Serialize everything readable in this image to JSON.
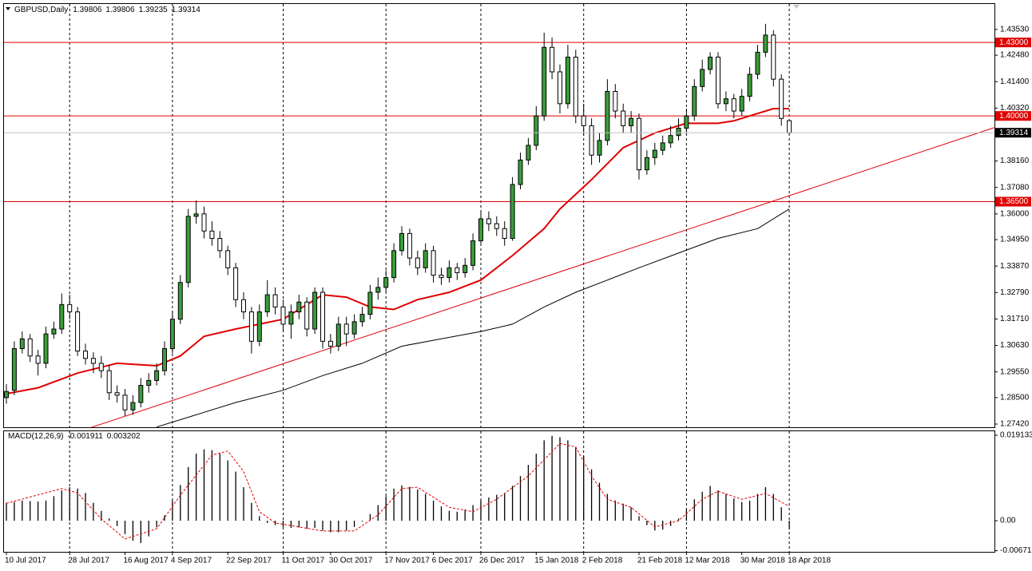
{
  "chart_data": {
    "type": "candlestick",
    "title": "GBPUSD,Daily",
    "grid": true,
    "up_color": "#3a9d3a",
    "down_color": "#ffffff",
    "categories": [
      "10 Jul 2017",
      null,
      null,
      null,
      null,
      null,
      null,
      null,
      "28 Jul 2017",
      null,
      null,
      null,
      null,
      null,
      null,
      "16 Aug 2017",
      null,
      null,
      null,
      null,
      null,
      "4 Sep 2017",
      null,
      null,
      null,
      null,
      null,
      null,
      "22 Sep 2017",
      null,
      null,
      null,
      null,
      null,
      null,
      "11 Oct 2017",
      null,
      null,
      null,
      null,
      null,
      "30 Oct 2017",
      null,
      null,
      null,
      null,
      null,
      null,
      "17 Nov 2017",
      null,
      null,
      null,
      null,
      null,
      "6 Dec 2017",
      null,
      null,
      null,
      null,
      null,
      "26 Dec 2017",
      null,
      null,
      null,
      null,
      null,
      null,
      "15 Jan 2018",
      null,
      null,
      null,
      null,
      null,
      "2 Feb 2018",
      null,
      null,
      null,
      null,
      null,
      null,
      "21 Feb 2018",
      null,
      null,
      null,
      null,
      null,
      "12 Mar 2018",
      null,
      null,
      null,
      null,
      null,
      null,
      "30 Mar 2018",
      null,
      null,
      null,
      null,
      null,
      "18 Apr 2018"
    ],
    "open": [
      1.285,
      1.288,
      1.305,
      1.309,
      1.302,
      1.299,
      1.311,
      1.313,
      1.323,
      1.32,
      1.304,
      1.301,
      1.299,
      1.296,
      1.287,
      1.286,
      1.28,
      1.283,
      1.29,
      1.292,
      1.296,
      1.305,
      1.317,
      1.332,
      1.359,
      1.36,
      1.353,
      1.35,
      1.345,
      1.338,
      1.325,
      1.32,
      1.308,
      1.32,
      1.327,
      1.322,
      1.315,
      1.32,
      1.324,
      1.313,
      1.328,
      1.308,
      1.306,
      1.315,
      1.311,
      1.316,
      1.319,
      1.328,
      1.33,
      1.334,
      1.345,
      1.352,
      1.342,
      1.338,
      1.345,
      1.335,
      1.334,
      1.338,
      1.336,
      1.339,
      1.349,
      1.358,
      1.356,
      1.354,
      1.35,
      1.372,
      1.382,
      1.388,
      1.4,
      1.428,
      1.418,
      1.405,
      1.424,
      1.4,
      1.396,
      1.384,
      1.39,
      1.41,
      1.402,
      1.396,
      1.399,
      1.378,
      1.383,
      1.386,
      1.389,
      1.392,
      1.395,
      1.4,
      1.412,
      1.419,
      1.424,
      1.405,
      1.407,
      1.402,
      1.408,
      1.417,
      1.426,
      1.433,
      1.415,
      1.39806
    ],
    "high": [
      1.2905,
      1.308,
      1.312,
      1.311,
      1.3045,
      1.314,
      1.316,
      1.3275,
      1.327,
      1.322,
      1.307,
      1.3035,
      1.302,
      1.2985,
      1.29,
      1.2885,
      1.286,
      1.293,
      1.295,
      1.299,
      1.308,
      1.32,
      1.335,
      1.362,
      1.3655,
      1.363,
      1.357,
      1.353,
      1.347,
      1.34,
      1.328,
      1.322,
      1.323,
      1.333,
      1.33,
      1.325,
      1.323,
      1.327,
      1.326,
      1.33,
      1.33,
      1.311,
      1.318,
      1.318,
      1.319,
      1.322,
      1.331,
      1.334,
      1.337,
      1.348,
      1.355,
      1.354,
      1.345,
      1.348,
      1.347,
      1.338,
      1.341,
      1.34,
      1.342,
      1.352,
      1.361,
      1.361,
      1.359,
      1.357,
      1.375,
      1.385,
      1.391,
      1.404,
      1.434,
      1.432,
      1.421,
      1.429,
      1.427,
      1.405,
      1.399,
      1.393,
      1.415,
      1.413,
      1.405,
      1.402,
      1.401,
      1.386,
      1.389,
      1.392,
      1.396,
      1.399,
      1.403,
      1.415,
      1.423,
      1.426,
      1.426,
      1.41,
      1.409,
      1.411,
      1.42,
      1.429,
      1.4376,
      1.435,
      1.417,
      1.39806
    ],
    "low": [
      1.2825,
      1.286,
      1.303,
      1.2995,
      1.294,
      1.297,
      1.309,
      1.311,
      1.317,
      1.302,
      1.2985,
      1.295,
      1.293,
      1.284,
      1.283,
      1.2775,
      1.278,
      1.281,
      1.287,
      1.29,
      1.294,
      1.303,
      1.315,
      1.33,
      1.356,
      1.35,
      1.347,
      1.342,
      1.335,
      1.322,
      1.317,
      1.303,
      1.306,
      1.318,
      1.319,
      1.312,
      1.309,
      1.317,
      1.31,
      1.311,
      1.305,
      1.303,
      1.304,
      1.306,
      1.309,
      1.314,
      1.317,
      1.325,
      1.328,
      1.332,
      1.343,
      1.339,
      1.335,
      1.336,
      1.332,
      1.331,
      1.332,
      1.333,
      1.334,
      1.337,
      1.347,
      1.353,
      1.351,
      1.347,
      1.349,
      1.37,
      1.38,
      1.386,
      1.398,
      1.415,
      1.401,
      1.403,
      1.397,
      1.392,
      1.38,
      1.381,
      1.388,
      1.399,
      1.393,
      1.393,
      1.374,
      1.376,
      1.38,
      1.384,
      1.387,
      1.39,
      1.393,
      1.398,
      1.41,
      1.417,
      1.403,
      1.402,
      1.399,
      1.4,
      1.406,
      1.415,
      1.424,
      1.412,
      1.396,
      1.39235
    ],
    "close": [
      1.2875,
      1.305,
      1.309,
      1.302,
      1.299,
      1.311,
      1.313,
      1.323,
      1.32,
      1.304,
      1.301,
      1.299,
      1.296,
      1.287,
      1.286,
      1.28,
      1.283,
      1.29,
      1.292,
      1.296,
      1.305,
      1.317,
      1.332,
      1.359,
      1.36,
      1.353,
      1.35,
      1.345,
      1.338,
      1.325,
      1.32,
      1.308,
      1.32,
      1.327,
      1.322,
      1.315,
      1.32,
      1.324,
      1.313,
      1.328,
      1.308,
      1.306,
      1.315,
      1.311,
      1.316,
      1.319,
      1.328,
      1.33,
      1.334,
      1.345,
      1.352,
      1.342,
      1.338,
      1.345,
      1.335,
      1.334,
      1.338,
      1.336,
      1.339,
      1.349,
      1.358,
      1.356,
      1.354,
      1.35,
      1.372,
      1.382,
      1.388,
      1.4,
      1.428,
      1.418,
      1.405,
      1.424,
      1.4,
      1.396,
      1.384,
      1.39,
      1.41,
      1.402,
      1.396,
      1.399,
      1.378,
      1.383,
      1.386,
      1.389,
      1.392,
      1.395,
      1.4,
      1.412,
      1.419,
      1.424,
      1.405,
      1.407,
      1.402,
      1.408,
      1.417,
      1.426,
      1.433,
      1.415,
      1.399,
      1.39314
    ],
    "ylim": [
      1.2729,
      1.4457
    ],
    "yticks": [
      {
        "value": 1.4353,
        "label": "1.43530"
      },
      {
        "value": 1.4248,
        "label": "1.42480"
      },
      {
        "value": 1.414,
        "label": "1.41400"
      },
      {
        "value": 1.4032,
        "label": "1.40320"
      },
      {
        "value": 1.3816,
        "label": "1.38160"
      },
      {
        "value": 1.3708,
        "label": "1.37080"
      },
      {
        "value": 1.36,
        "label": "1.36000"
      },
      {
        "value": 1.3495,
        "label": "1.34950"
      },
      {
        "value": 1.3387,
        "label": "1.33870"
      },
      {
        "value": 1.3279,
        "label": "1.32790"
      },
      {
        "value": 1.3171,
        "label": "1.31710"
      },
      {
        "value": 1.3063,
        "label": "1.30630"
      },
      {
        "value": 1.2955,
        "label": "1.29550"
      },
      {
        "value": 1.285,
        "label": "1.28500"
      },
      {
        "value": 1.2742,
        "label": "1.27420"
      }
    ],
    "hlines": [
      {
        "value": 1.43,
        "label": "1.43000",
        "color": "#e00000"
      },
      {
        "value": 1.4,
        "label": "1.40000",
        "color": "#e00000"
      },
      {
        "value": 1.365,
        "label": "1.36500",
        "color": "#e00000"
      }
    ],
    "price_line_color": "#c0c0c0",
    "moving_averages": [
      {
        "color": "#e00000",
        "width": 2,
        "x": [
          0,
          4,
          9,
          14,
          19,
          22,
          25,
          29,
          35,
          40,
          43,
          46,
          49,
          52,
          56,
          60,
          64,
          68,
          70,
          74,
          78,
          82,
          86,
          90,
          92,
          95,
          97,
          99
        ],
        "values": [
          1.2866,
          1.289,
          1.295,
          1.299,
          1.298,
          1.302,
          1.31,
          1.313,
          1.317,
          1.327,
          1.326,
          1.322,
          1.321,
          1.325,
          1.328,
          1.333,
          1.343,
          1.354,
          1.362,
          1.374,
          1.387,
          1.393,
          1.397,
          1.397,
          1.398,
          1.401,
          1.403,
          1.403
        ]
      },
      {
        "color": "#000000",
        "width": 1,
        "x": [
          19,
          24,
          29,
          35,
          40,
          45,
          50,
          55,
          60,
          64,
          68,
          72,
          76,
          80,
          85,
          90,
          95,
          99
        ],
        "values": [
          1.273,
          1.278,
          1.283,
          1.288,
          1.294,
          1.299,
          1.306,
          1.309,
          1.312,
          1.315,
          1.322,
          1.328,
          1.333,
          1.338,
          1.344,
          1.35,
          1.354,
          1.362
        ]
      }
    ],
    "trendline": {
      "color": "#e00000",
      "x": [
        10.8,
        124.9
      ],
      "values": [
        1.2729,
        1.3952
      ]
    },
    "macd": {
      "title": "MACD(12,26,9)",
      "ylim": [
        -0.00697,
        0.02003
      ],
      "yticks": [
        0.019133,
        {
          "value": 0,
          "label": "0.00"
        },
        -0.006718
      ],
      "histogram": [
        0.004,
        0.0042,
        0.0045,
        0.0044,
        0.0043,
        0.0045,
        0.0055,
        0.0068,
        0.0075,
        0.0072,
        0.0062,
        0.004,
        0.0022,
        0.0005,
        -0.0012,
        -0.003,
        -0.0045,
        -0.005,
        -0.0035,
        -0.0015,
        0.0012,
        0.0045,
        0.008,
        0.012,
        0.015,
        0.016,
        0.0158,
        0.015,
        0.0135,
        0.011,
        0.0075,
        0.004,
        0.001,
        -0.0005,
        -0.001,
        -0.0014,
        -0.0016,
        -0.0015,
        -0.0018,
        -0.0016,
        -0.0022,
        -0.0026,
        -0.0026,
        -0.0022,
        -0.0014,
        -0.0002,
        0.0015,
        0.0035,
        0.0055,
        0.0072,
        0.0079,
        0.0076,
        0.007,
        0.006,
        0.0045,
        0.0032,
        0.0022,
        0.002,
        0.0025,
        0.0035,
        0.0045,
        0.0052,
        0.0058,
        0.0062,
        0.0078,
        0.01,
        0.0125,
        0.015,
        0.018,
        0.019,
        0.0187,
        0.018,
        0.0165,
        0.0145,
        0.0115,
        0.0085,
        0.006,
        0.0045,
        0.0038,
        0.003,
        0.001,
        -0.001,
        -0.0022,
        -0.002,
        -0.0012,
        0.0005,
        0.0025,
        0.0048,
        0.0065,
        0.0078,
        0.0068,
        0.006,
        0.005,
        0.0042,
        0.0045,
        0.006,
        0.0075,
        0.006,
        0.003,
        -0.001911
      ],
      "signal": {
        "color": "#e00000",
        "x": [
          0,
          7,
          9,
          12,
          15,
          19,
          22,
          26,
          28,
          30,
          32,
          34,
          40,
          44,
          47,
          50,
          52,
          56,
          59,
          62,
          66,
          70,
          72,
          74,
          76,
          79,
          82,
          85,
          88,
          90,
          93,
          96,
          99
        ],
        "values": [
          0.0039,
          0.0072,
          0.0062,
          0.0004,
          -0.0041,
          -0.0018,
          0.0057,
          0.0147,
          0.0156,
          0.011,
          0.002,
          -0.0005,
          -0.0023,
          -0.0023,
          0.0013,
          0.0072,
          0.0075,
          0.003,
          0.002,
          0.0048,
          0.01,
          0.0173,
          0.0165,
          0.01,
          0.0048,
          0.003,
          -0.0014,
          0.0,
          0.0048,
          0.0066,
          0.0048,
          0.0061,
          0.003202
        ]
      }
    }
  }
}
